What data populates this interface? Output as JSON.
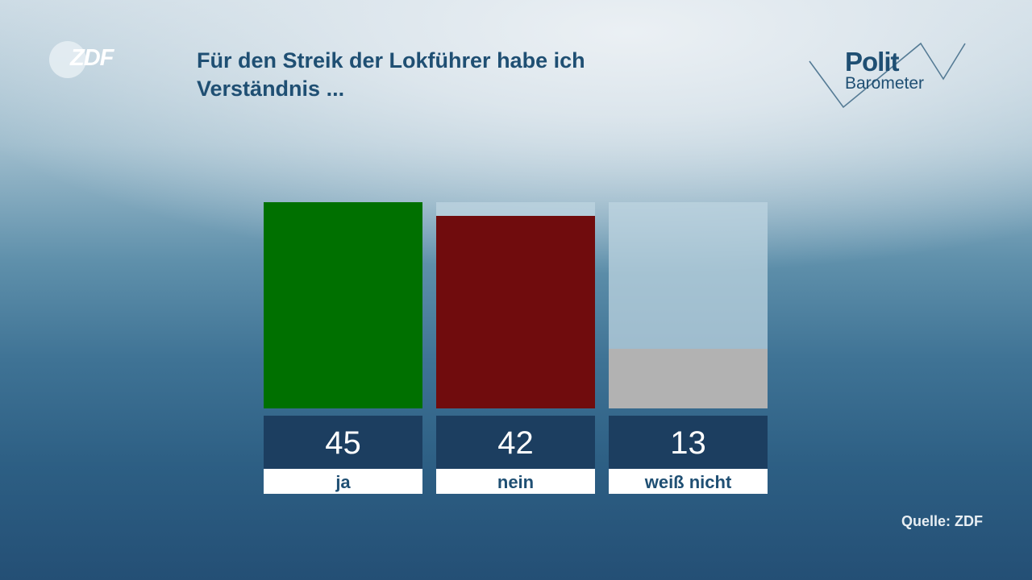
{
  "logo": {
    "text": "ZDF"
  },
  "brand": {
    "line1": "Polit",
    "line2": "Barometer"
  },
  "chart_data": {
    "type": "bar",
    "title": "Für den Streik der Lokführer habe ich Verständnis ...",
    "categories": [
      "ja",
      "nein",
      "weiß nicht"
    ],
    "values": [
      45,
      42,
      13
    ],
    "colors": [
      "#007000",
      "#700c0d",
      "#b2b2b2"
    ],
    "ylim": [
      0,
      45
    ],
    "grid": false
  },
  "source": "Quelle: ZDF"
}
